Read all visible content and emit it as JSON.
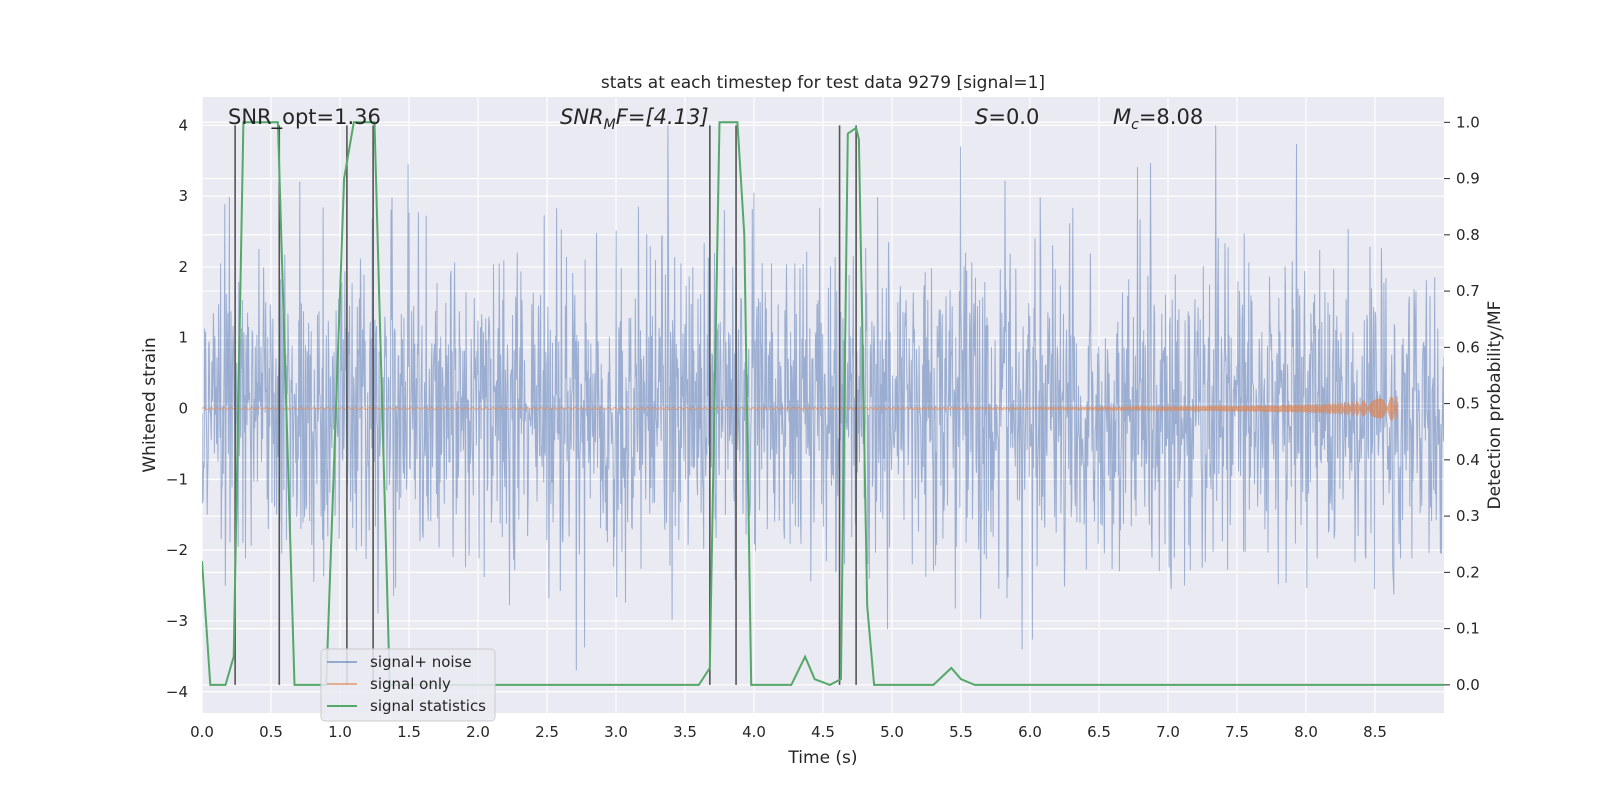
{
  "chart_data": {
    "type": "line",
    "title": "stats at each timestep for test data 9279 [signal=1]",
    "xlabel": "Time (s)",
    "ylabel": "Whitened strain",
    "ylabel_right": "Detection probability/MF",
    "xlim": [
      0.0,
      9.0
    ],
    "ylim": [
      -4.3,
      4.4
    ],
    "ylim_right": [
      -0.05,
      1.045
    ],
    "xticks": [
      0.0,
      0.5,
      1.0,
      1.5,
      2.0,
      2.5,
      3.0,
      3.5,
      4.0,
      4.5,
      5.0,
      5.5,
      6.0,
      6.5,
      7.0,
      7.5,
      8.0,
      8.5
    ],
    "xtick_labels": [
      "0.0",
      "0.5",
      "1.0",
      "1.5",
      "2.0",
      "2.5",
      "3.0",
      "3.5",
      "4.0",
      "4.5",
      "5.0",
      "5.5",
      "6.0",
      "6.5",
      "7.0",
      "7.5",
      "8.0",
      "8.5"
    ],
    "yticks": [
      4,
      3,
      2,
      1,
      0,
      -1,
      -2,
      -3,
      -4
    ],
    "ytick_labels": [
      "4",
      "3",
      "2",
      "1",
      "0",
      "−1",
      "−2",
      "−3",
      "−4"
    ],
    "yticks_right": [
      1.0,
      0.9,
      0.8,
      0.7,
      0.6,
      0.5,
      0.4,
      0.3,
      0.2,
      0.1,
      0.0
    ],
    "ytick_right_labels": [
      "1.0",
      "0.9",
      "0.8",
      "0.7",
      "0.6",
      "0.5",
      "0.4",
      "0.3",
      "0.2",
      "0.1",
      "0.0"
    ],
    "annotations": {
      "snr_opt": "SNR_opt=1.36",
      "snr_mf_prefix": "SNR",
      "snr_mf_sub": "M",
      "snr_mf_rest": "F=[4.13]",
      "s_italic": "S",
      "s_rest": "=0.0",
      "mc_italic": "M",
      "mc_sub": "c",
      "mc_rest": "=8.08"
    },
    "series": [
      {
        "name": "signal+ noise",
        "color": "#4c72b0",
        "description": "whitened noisy strain, approx. amplitude within ±1.8 with spikes up to ±4",
        "envelope_typical": 1.65,
        "peak_range": [
          -3.7,
          4.0
        ]
      },
      {
        "name": "signal only",
        "color": "#dd8452",
        "description": "chirp signal near 0, growing to about ±0.18 near t = 8.66 s",
        "x": [
          0.0,
          6.0,
          7.0,
          7.5,
          8.0,
          8.3,
          8.5,
          8.6,
          8.66
        ],
        "amplitude": [
          0.01,
          0.015,
          0.025,
          0.04,
          0.06,
          0.09,
          0.13,
          0.17,
          0.18
        ]
      },
      {
        "name": "signal statistics",
        "color": "#55a868",
        "axis": "right",
        "x": [
          0.0,
          0.06,
          0.17,
          0.23,
          0.3,
          0.55,
          0.67,
          0.9,
          1.03,
          1.1,
          1.25,
          1.36,
          1.5,
          3.6,
          3.68,
          3.75,
          3.88,
          3.93,
          3.98,
          4.27,
          4.37,
          4.44,
          4.55,
          4.63,
          4.68,
          4.74,
          4.76,
          4.82,
          4.87,
          5.3,
          5.43,
          5.5,
          5.6,
          9.0
        ],
        "values": [
          0.22,
          0.0,
          0.0,
          0.05,
          1.0,
          1.0,
          0.0,
          0.0,
          0.9,
          1.0,
          1.0,
          0.0,
          0.0,
          0.0,
          0.03,
          1.0,
          1.0,
          0.8,
          0.0,
          0.0,
          0.05,
          0.01,
          0.0,
          0.01,
          0.98,
          0.99,
          0.97,
          0.14,
          0.0,
          0.0,
          0.03,
          0.01,
          0.0,
          0.0
        ]
      }
    ],
    "event_markers_x": [
      0.24,
      0.56,
      1.05,
      1.24,
      3.68,
      3.87,
      4.62,
      4.74
    ],
    "legend": [
      "signal+ noise",
      "signal only",
      "signal statistics"
    ],
    "legend_position": "lower-left",
    "grid": true,
    "colors": {
      "background": "#eaeaf2",
      "grid": "#ffffff",
      "noise": "#4c72b0",
      "signal": "#dd8452",
      "stats": "#55a868",
      "markers": "#555555"
    }
  }
}
